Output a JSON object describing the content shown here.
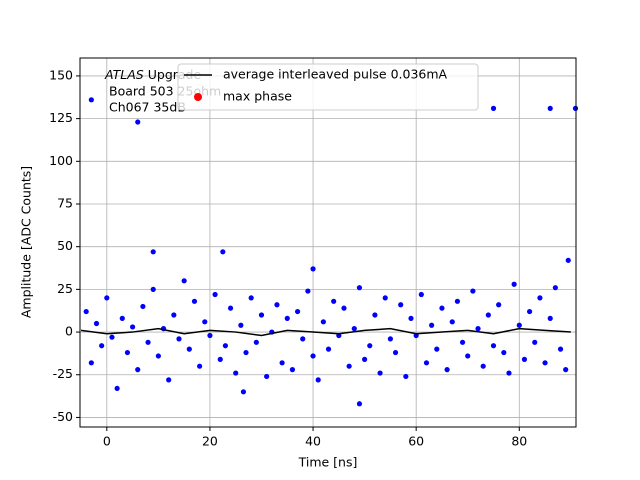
{
  "chart_data": {
    "type": "scatter",
    "xlabel": "Time [ns]",
    "ylabel": "Amplitude [ADC Counts]",
    "annotations": [
      "ATLAS",
      "Upgrade",
      "Board 503 25ohm",
      "Ch067 35dB"
    ],
    "xlim": [
      -5.2,
      91
    ],
    "ylim": [
      -55.6,
      160.5
    ],
    "xticks": [
      0,
      20,
      40,
      60,
      80
    ],
    "yticks": [
      -50,
      -25,
      0,
      25,
      50,
      75,
      100,
      125,
      150
    ],
    "grid": true,
    "legend": "upper center",
    "series": [
      {
        "color": "#0000ff",
        "kind": "points",
        "x": [
          -4,
          -3,
          -2,
          -1,
          0,
          1,
          2,
          3,
          4,
          5,
          6,
          7,
          8,
          9,
          10,
          11,
          12,
          13,
          14,
          15,
          16,
          17,
          18,
          19,
          20,
          21,
          22,
          23,
          24,
          25,
          26,
          27,
          28,
          29,
          30,
          31,
          32,
          33,
          34,
          35,
          36,
          37,
          38,
          39,
          40,
          41,
          42,
          43,
          44,
          45,
          46,
          47,
          48,
          49,
          50,
          51,
          52,
          53,
          54,
          55,
          56,
          57,
          58,
          59,
          60,
          61,
          62,
          63,
          64,
          65,
          66,
          67,
          68,
          69,
          70,
          71,
          72,
          73,
          74,
          75,
          76,
          77,
          78,
          79,
          80,
          81,
          82,
          83,
          84,
          85,
          86,
          87,
          88,
          89,
          -3,
          6,
          75,
          86,
          90.9,
          9,
          22.5,
          89.5,
          49,
          26.5,
          40
        ],
        "values": [
          12,
          -18,
          5,
          -8,
          20,
          -3,
          -33,
          8,
          -12,
          3,
          -22,
          15,
          -6,
          25,
          -14,
          2,
          -28,
          10,
          -4,
          30,
          -10,
          18,
          -20,
          6,
          -2,
          22,
          -16,
          -8,
          14,
          -24,
          4,
          -12,
          20,
          -6,
          10,
          -26,
          0,
          16,
          -18,
          8,
          -22,
          12,
          -4,
          24,
          -14,
          -28,
          6,
          -10,
          18,
          -2,
          14,
          -20,
          2,
          26,
          -16,
          -8,
          10,
          -24,
          20,
          -4,
          -12,
          16,
          -26,
          8,
          -2,
          22,
          -18,
          4,
          -10,
          14,
          -22,
          6,
          18,
          -6,
          -14,
          24,
          2,
          -20,
          10,
          -8,
          16,
          -12,
          -24,
          28,
          4,
          -16,
          12,
          -6,
          20,
          -18,
          8,
          26,
          -10,
          -22,
          136,
          123,
          131,
          131,
          131,
          47,
          47,
          42,
          -42,
          -35,
          37
        ]
      },
      {
        "name": "average interleaved pulse 0.036mA",
        "color": "#000000",
        "kind": "line",
        "x": [
          -5,
          0,
          5,
          10,
          15,
          20,
          25,
          30,
          35,
          40,
          45,
          50,
          55,
          60,
          65,
          70,
          75,
          80,
          85,
          90
        ],
        "values": [
          1,
          -1,
          0,
          2,
          -1,
          1,
          0,
          -2,
          1,
          0,
          -1,
          1,
          2,
          -1,
          0,
          1,
          -1,
          2,
          1,
          0
        ]
      },
      {
        "name": "max phase",
        "color": "#ff0000",
        "kind": "points",
        "x": [],
        "values": []
      }
    ]
  }
}
